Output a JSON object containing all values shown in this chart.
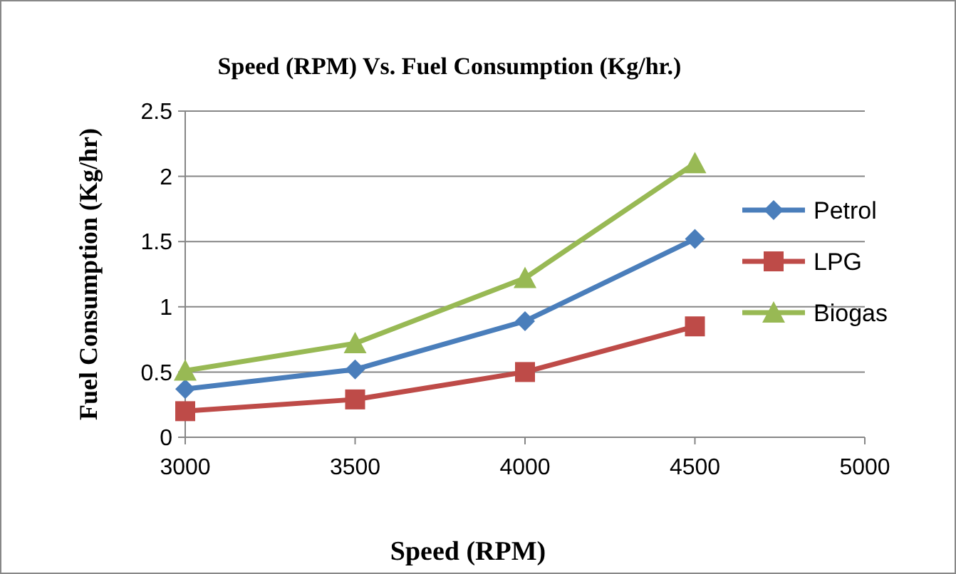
{
  "chart_data": {
    "type": "line",
    "title": "Speed (RPM) Vs. Fuel Consumption (Kg/hr.)",
    "xlabel": "Speed (RPM)",
    "ylabel": "Fuel Consumption (Kg/hr)",
    "x": [
      3000,
      3500,
      4000,
      4500
    ],
    "xlim": [
      3000,
      5000
    ],
    "xticks": [
      3000,
      3500,
      4000,
      4500,
      5000
    ],
    "ylim": [
      0,
      2.5
    ],
    "yticks": [
      0,
      0.5,
      1,
      1.5,
      2,
      2.5
    ],
    "grid": "y",
    "legend": "right",
    "series": [
      {
        "name": "Petrol",
        "color": "#4a7ebb",
        "marker": "diamond",
        "values": [
          0.37,
          0.52,
          0.89,
          1.52
        ]
      },
      {
        "name": "LPG",
        "color": "#be4b48",
        "marker": "square",
        "values": [
          0.2,
          0.29,
          0.5,
          0.85
        ]
      },
      {
        "name": "Biogas",
        "color": "#98b954",
        "marker": "triangle",
        "values": [
          0.51,
          0.72,
          1.22,
          2.1
        ]
      }
    ]
  }
}
